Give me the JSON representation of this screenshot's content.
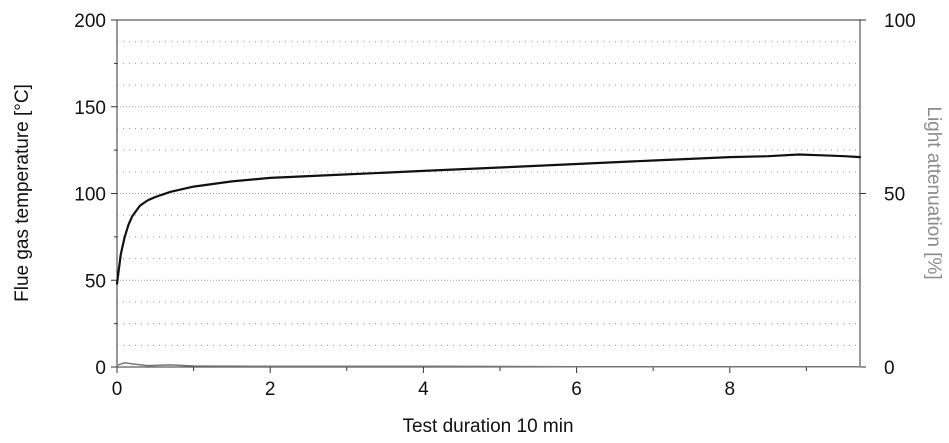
{
  "chart_data": {
    "type": "line",
    "xlabel": "Test duration 10 min",
    "ylabel": "Flue gas temperature [°C]",
    "y2label": "Light attenuation [%]",
    "xlim": [
      0,
      9.7
    ],
    "ylim": [
      0,
      200
    ],
    "y2lim": [
      0,
      100
    ],
    "xticks": [
      "0",
      "2",
      "4",
      "6",
      "8"
    ],
    "yticks": [
      "0",
      "50",
      "100",
      "150",
      "200"
    ],
    "y2ticks": [
      "0",
      "50",
      "100"
    ],
    "grid": "horizontal dotted",
    "colors": {
      "temperature": "#111111",
      "attenuation": "#777777",
      "grid": "#9a9a9a",
      "right_axis_title": "#8c8c8c"
    },
    "series": [
      {
        "axis": "left",
        "x": [
          0,
          0.05,
          0.1,
          0.15,
          0.2,
          0.3,
          0.4,
          0.5,
          0.7,
          1.0,
          1.5,
          2.0,
          3.0,
          4.0,
          5.0,
          6.0,
          7.0,
          8.0,
          8.5,
          8.9,
          9.2,
          9.5,
          9.7
        ],
        "values": [
          48,
          65,
          75,
          82,
          87,
          93,
          96,
          98,
          101,
          104,
          107,
          109,
          111,
          113,
          115,
          117,
          119,
          121,
          121.5,
          122.5,
          122,
          121.5,
          121
        ]
      },
      {
        "axis": "right",
        "x": [
          0,
          0.1,
          0.2,
          0.4,
          0.7,
          1.0,
          2.0,
          4.0,
          6.0,
          8.0,
          9.7
        ],
        "values": [
          0.5,
          1.2,
          0.9,
          0.4,
          0.6,
          0.3,
          0.2,
          0.2,
          0.1,
          0.1,
          0.1
        ]
      }
    ]
  }
}
